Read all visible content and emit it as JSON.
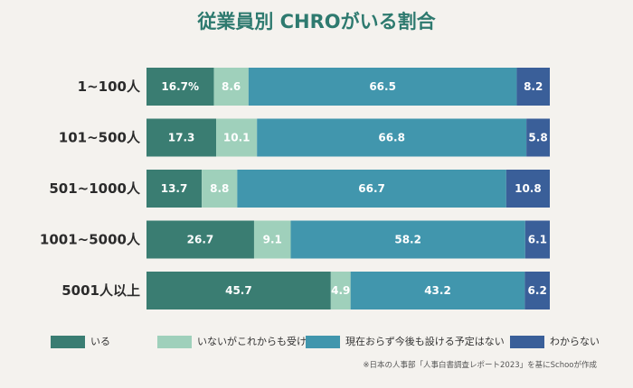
{
  "chart_data": {
    "type": "bar",
    "orientation": "horizontal-stacked",
    "title": "従業員別 CHROがいる割合",
    "categories": [
      "1~100人",
      "101~500人",
      "501~1000人",
      "1001~5000人",
      "5001人以上"
    ],
    "series": [
      {
        "name": "いる",
        "color": "#3a7d72",
        "values": [
          16.7,
          17.3,
          13.7,
          26.7,
          45.7
        ],
        "labels": [
          "16.7%",
          "17.3",
          "13.7",
          "26.7",
          "45.7"
        ]
      },
      {
        "name": "いないがこれからも受ける予定",
        "color": "#9fd0bb",
        "values": [
          8.6,
          10.1,
          8.8,
          9.1,
          4.9
        ],
        "labels": [
          "8.6",
          "10.1",
          "8.8",
          "9.1",
          "4.9"
        ]
      },
      {
        "name": "現在おらず今後も設ける予定はない",
        "color": "#4196ad",
        "values": [
          66.5,
          66.8,
          66.7,
          58.2,
          43.2
        ],
        "labels": [
          "66.5",
          "66.8",
          "66.7",
          "58.2",
          "43.2"
        ]
      },
      {
        "name": "わからない",
        "color": "#3a5f99",
        "values": [
          8.2,
          5.8,
          10.8,
          6.1,
          6.2
        ],
        "labels": [
          "8.2",
          "5.8",
          "10.8",
          "6.1",
          "6.2"
        ]
      }
    ],
    "xlim": [
      0,
      100
    ],
    "grid": false,
    "legend_position": "bottom"
  },
  "source_note": "※日本の人事部「人事白書調査レポート2023」を基にSchooが作成"
}
